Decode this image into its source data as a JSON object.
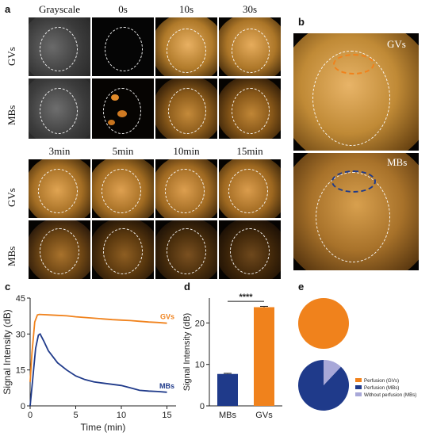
{
  "panel_a": {
    "letter": "a",
    "top_headers": [
      "Grayscale",
      "0s",
      "10s",
      "30s"
    ],
    "bottom_headers": [
      "3min",
      "5min",
      "10min",
      "15min"
    ],
    "row_labels": [
      "GVs",
      "MBs"
    ]
  },
  "panel_b": {
    "letter": "b",
    "labels": [
      "GVs",
      "MBs"
    ]
  },
  "panel_c": {
    "letter": "c"
  },
  "panel_d": {
    "letter": "d"
  },
  "panel_e": {
    "letter": "e"
  },
  "colors": {
    "gv_orange": "#f0821c",
    "mb_navy": "#1f3a8a",
    "without_light": "#a8a8d8",
    "ultrasound_gold": "#c8902e"
  },
  "chart_data": [
    {
      "type": "line",
      "title": "",
      "xlabel": "Time  (min)",
      "ylabel": "Signal Intensity (dB)",
      "xlim": [
        0,
        16
      ],
      "ylim": [
        0,
        45
      ],
      "xticks": [
        0,
        5,
        10,
        15
      ],
      "yticks": [
        0,
        15,
        30,
        45
      ],
      "yticklabels": [
        "0",
        "15",
        "30",
        "45"
      ],
      "series": [
        {
          "name": "GVs",
          "color": "#f0821c",
          "x": [
            0,
            0.2,
            0.5,
            0.8,
            1.0,
            2,
            3,
            4,
            5,
            6,
            7,
            8,
            9,
            10,
            11,
            12,
            13,
            14,
            15
          ],
          "y": [
            10,
            22,
            35,
            38,
            38.2,
            38,
            37.8,
            37.6,
            37.2,
            36.9,
            36.6,
            36.3,
            36,
            35.8,
            35.6,
            35.3,
            35,
            34.8,
            34.5
          ]
        },
        {
          "name": "MBs",
          "color": "#1f3a8a",
          "x": [
            0,
            0.3,
            0.6,
            0.9,
            1.1,
            1.5,
            2,
            3,
            4,
            5,
            6,
            7,
            8,
            9,
            10,
            11,
            12,
            13,
            14,
            15
          ],
          "y": [
            0,
            12,
            24,
            29.5,
            30,
            27,
            23,
            18,
            15,
            12.5,
            11,
            10,
            9.5,
            9,
            8.5,
            7.5,
            6.5,
            6.2,
            6,
            5.7
          ]
        }
      ]
    },
    {
      "type": "bar",
      "title": "",
      "xlabel": "",
      "ylabel": "Signal Intensity (dB)",
      "ylim": [
        0,
        26
      ],
      "yticks": [
        0,
        10,
        20
      ],
      "yticklabels": [
        "0",
        "10",
        "20"
      ],
      "categories": [
        "MBs",
        "GVs"
      ],
      "values": [
        7.7,
        23.8
      ],
      "errors": [
        0.15,
        0.2
      ],
      "colors": [
        "#1f3a8a",
        "#f0821c"
      ],
      "significance": "****"
    },
    {
      "type": "pie",
      "title": "",
      "legend": [
        "Perfusion (GVs)",
        "Perfusion (MBs)",
        "Without perfusion (MBs)"
      ],
      "legend_colors": [
        "#f0821c",
        "#1f3a8a",
        "#a8a8d8"
      ],
      "pies": [
        {
          "slices": [
            {
              "label": "Perfusion (GVs)",
              "value": 100,
              "color": "#f0821c"
            }
          ]
        },
        {
          "slices": [
            {
              "label": "Perfusion (MBs)",
              "value": 88,
              "color": "#1f3a8a"
            },
            {
              "label": "Without perfusion (MBs)",
              "value": 12,
              "color": "#a8a8d8"
            }
          ]
        }
      ]
    }
  ]
}
